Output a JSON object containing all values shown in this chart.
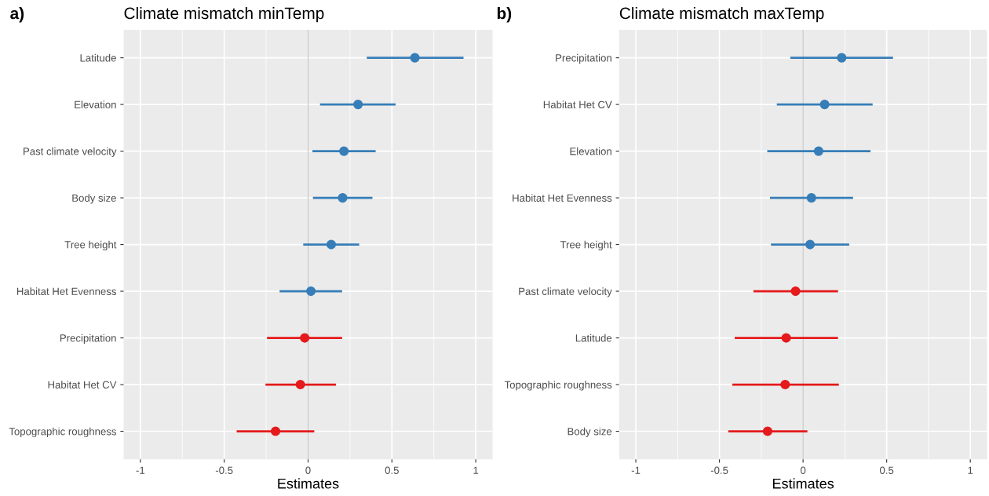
{
  "chart_data": [
    {
      "type": "scatter",
      "orientation": "horizontal",
      "title": "Climate mismatch minTemp",
      "xlabel": "Estimates",
      "annotations": [
        "a)"
      ],
      "categories": [
        "Latitude",
        "Elevation",
        "Past climate velocity",
        "Body size",
        "Tree height",
        "Habitat Het Evenness",
        "Precipitation",
        "Habitat Het CV",
        "Topographic roughness"
      ],
      "values": [
        0.637,
        0.298,
        0.214,
        0.206,
        0.138,
        0.017,
        -0.02,
        -0.046,
        -0.194
      ],
      "errors": [
        [
          0.35,
          0.927
        ],
        [
          0.071,
          0.522
        ],
        [
          0.026,
          0.403
        ],
        [
          0.029,
          0.384
        ],
        [
          -0.029,
          0.305
        ],
        [
          -0.17,
          0.203
        ],
        [
          -0.245,
          0.203
        ],
        [
          -0.254,
          0.166
        ],
        [
          -0.426,
          0.037
        ]
      ],
      "colors": [
        "#377eb8",
        "#377eb8",
        "#377eb8",
        "#377eb8",
        "#377eb8",
        "#377eb8",
        "#e41a1c",
        "#e41a1c",
        "#e41a1c"
      ],
      "xlim": [
        -1.1,
        1.1
      ],
      "xticks": [
        -1,
        -0.5,
        0,
        0.5,
        1
      ],
      "ref_lines": [
        {
          "axis": "x",
          "value": 0,
          "color": "#bdbdbd"
        }
      ],
      "grid": true,
      "marker": "circle"
    },
    {
      "type": "scatter",
      "orientation": "horizontal",
      "title": "Climate mismatch maxTemp",
      "xlabel": "Estimates",
      "annotations": [
        "b)"
      ],
      "categories": [
        "Precipitation",
        "Habitat Het CV",
        "Elevation",
        "Habitat Het Evenness",
        "Tree height",
        "Past climate velocity",
        "Latitude",
        "Topographic roughness",
        "Body size"
      ],
      "values": [
        0.231,
        0.129,
        0.093,
        0.05,
        0.042,
        -0.045,
        -0.101,
        -0.107,
        -0.212
      ],
      "errors": [
        [
          -0.076,
          0.538
        ],
        [
          -0.157,
          0.416
        ],
        [
          -0.214,
          0.403
        ],
        [
          -0.198,
          0.299
        ],
        [
          -0.192,
          0.276
        ],
        [
          -0.297,
          0.209
        ],
        [
          -0.409,
          0.209
        ],
        [
          -0.423,
          0.214
        ],
        [
          -0.447,
          0.026
        ]
      ],
      "colors": [
        "#377eb8",
        "#377eb8",
        "#377eb8",
        "#377eb8",
        "#377eb8",
        "#e41a1c",
        "#e41a1c",
        "#e41a1c",
        "#e41a1c"
      ],
      "xlim": [
        -1.1,
        1.1
      ],
      "xticks": [
        -1,
        -0.5,
        0,
        0.5,
        1
      ],
      "ref_lines": [
        {
          "axis": "x",
          "value": 0,
          "color": "#bdbdbd"
        }
      ],
      "grid": true,
      "marker": "circle"
    }
  ]
}
